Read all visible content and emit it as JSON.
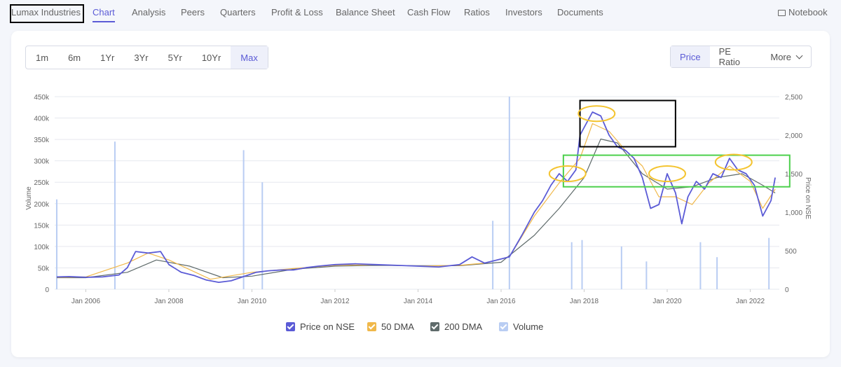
{
  "nav": {
    "brand": "Lumax Industries",
    "items": [
      "Chart",
      "Analysis",
      "Peers",
      "Quarters",
      "Profit & Loss",
      "Balance Sheet",
      "Cash Flow",
      "Ratios",
      "Investors",
      "Documents"
    ],
    "notebook": "Notebook"
  },
  "ranges": [
    "1m",
    "6m",
    "1Yr",
    "3Yr",
    "5Yr",
    "10Yr",
    "Max"
  ],
  "selected_range": "Max",
  "metrics": {
    "price": "Price",
    "pe": "PE Ratio",
    "more": "More"
  },
  "legend": {
    "price": "Price on NSE",
    "dma50": "50 DMA",
    "dma200": "200 DMA",
    "volume": "Volume"
  },
  "colors": {
    "accent": "#5b5bd6",
    "price": "#5b5bd6",
    "dma50": "#f0b84a",
    "dma200": "#5f6b6b",
    "volume": "#b9cdf3",
    "highlight_box": "#000000",
    "support_box": "#4cd04c",
    "circle": "#f4c430"
  },
  "chart_data": {
    "type": "line",
    "x_axis": {
      "type": "date",
      "ticks": [
        "Jan 2006",
        "Jan 2008",
        "Jan 2010",
        "Jan 2012",
        "Jan 2014",
        "Jan 2016",
        "Jan 2018",
        "Jan 2020",
        "Jan 2022"
      ],
      "range": [
        2005.25,
        2022.7
      ]
    },
    "y_left": {
      "label": "Volume",
      "ticks": [
        "0",
        "50k",
        "100k",
        "150k",
        "200k",
        "250k",
        "300k",
        "350k",
        "400k",
        "450k"
      ],
      "range": [
        0,
        450000
      ]
    },
    "y_right": {
      "label": "Price on NSE",
      "ticks": [
        "0",
        "500",
        "1,000",
        "1,500",
        "2,000",
        "2,500"
      ],
      "range": [
        0,
        2500
      ]
    },
    "grid": true,
    "legend_position": "bottom",
    "series": [
      {
        "name": "Price on NSE",
        "axis": "right",
        "x": [
          2005.3,
          2005.6,
          2006.0,
          2006.4,
          2006.8,
          2007.0,
          2007.2,
          2007.5,
          2007.8,
          2008.0,
          2008.3,
          2008.6,
          2008.9,
          2009.2,
          2009.5,
          2009.8,
          2010.1,
          2010.4,
          2010.7,
          2011.0,
          2011.3,
          2011.6,
          2012.0,
          2012.5,
          2013.0,
          2013.5,
          2014.0,
          2014.5,
          2015.0,
          2015.3,
          2015.6,
          2015.9,
          2016.2,
          2016.5,
          2016.8,
          2017.0,
          2017.2,
          2017.4,
          2017.6,
          2017.8,
          2017.9,
          2018.0,
          2018.2,
          2018.4,
          2018.6,
          2018.8,
          2019.0,
          2019.2,
          2019.4,
          2019.6,
          2019.8,
          2020.0,
          2020.2,
          2020.35,
          2020.5,
          2020.7,
          2020.9,
          2021.1,
          2021.3,
          2021.5,
          2021.7,
          2021.9,
          2022.1,
          2022.3,
          2022.5,
          2022.6
        ],
        "y": [
          160,
          165,
          155,
          160,
          185,
          280,
          490,
          470,
          490,
          320,
          220,
          180,
          120,
          90,
          110,
          165,
          220,
          240,
          250,
          250,
          280,
          300,
          320,
          330,
          320,
          310,
          300,
          290,
          320,
          420,
          340,
          380,
          420,
          700,
          1000,
          1150,
          1350,
          1500,
          1400,
          1550,
          2000,
          2100,
          2300,
          2250,
          2000,
          1850,
          1800,
          1700,
          1450,
          1050,
          1100,
          1500,
          1250,
          850,
          1200,
          1400,
          1300,
          1500,
          1450,
          1700,
          1550,
          1500,
          1350,
          950,
          1150,
          1450
        ]
      },
      {
        "name": "50 DMA",
        "axis": "right",
        "x": [
          2005.3,
          2006.0,
          2007.0,
          2007.5,
          2008.0,
          2009.0,
          2010.0,
          2011.0,
          2012.0,
          2013.0,
          2014.0,
          2015.0,
          2015.6,
          2016.2,
          2016.8,
          2017.4,
          2017.9,
          2018.2,
          2018.6,
          2019.0,
          2019.4,
          2019.8,
          2020.2,
          2020.6,
          2021.0,
          2021.5,
          2022.0,
          2022.3,
          2022.6
        ],
        "y": [
          155,
          160,
          340,
          470,
          380,
          130,
          220,
          270,
          310,
          320,
          300,
          310,
          340,
          420,
          950,
          1380,
          1700,
          2150,
          2050,
          1800,
          1600,
          1200,
          1200,
          1100,
          1380,
          1600,
          1400,
          1050,
          1300
        ]
      },
      {
        "name": "200 DMA",
        "axis": "right",
        "x": [
          2005.3,
          2006.0,
          2007.0,
          2007.7,
          2008.5,
          2009.3,
          2010.0,
          2011.0,
          2012.0,
          2013.0,
          2014.0,
          2015.0,
          2016.0,
          2016.8,
          2017.4,
          2018.0,
          2018.4,
          2018.8,
          2019.4,
          2020.0,
          2020.6,
          2021.2,
          2021.8,
          2022.3,
          2022.6
        ],
        "y": [
          150,
          150,
          220,
          380,
          300,
          150,
          170,
          260,
          300,
          310,
          305,
          305,
          350,
          700,
          1050,
          1450,
          1950,
          1900,
          1500,
          1300,
          1330,
          1450,
          1500,
          1350,
          1250
        ]
      },
      {
        "name": "Volume",
        "axis": "left",
        "type": "bar",
        "x": [
          2005.3,
          2006.7,
          2009.8,
          2010.25,
          2015.8,
          2016.2,
          2017.7,
          2017.95,
          2018.9,
          2019.5,
          2020.8,
          2021.2,
          2022.45
        ],
        "y": [
          210000,
          345000,
          325000,
          250000,
          160000,
          450000,
          110000,
          115000,
          100000,
          65000,
          110000,
          75000,
          120000
        ]
      }
    ],
    "annotations": [
      {
        "shape": "rectangle",
        "color": "#000000",
        "x": [
          2017.9,
          2020.2
        ],
        "y": [
          1850,
          2450
        ]
      },
      {
        "shape": "rectangle",
        "color": "#4cd04c",
        "x": [
          2017.5,
          2022.95
        ],
        "y": [
          1330,
          1740
        ]
      },
      {
        "shape": "ellipse",
        "color": "#f4c430",
        "cx": 2018.3,
        "cy": 2280
      },
      {
        "shape": "ellipse",
        "color": "#f4c430",
        "cx": 2017.6,
        "cy": 1500
      },
      {
        "shape": "ellipse",
        "color": "#f4c430",
        "cx": 2020.0,
        "cy": 1500
      },
      {
        "shape": "ellipse",
        "color": "#f4c430",
        "cx": 2021.6,
        "cy": 1650
      }
    ]
  }
}
